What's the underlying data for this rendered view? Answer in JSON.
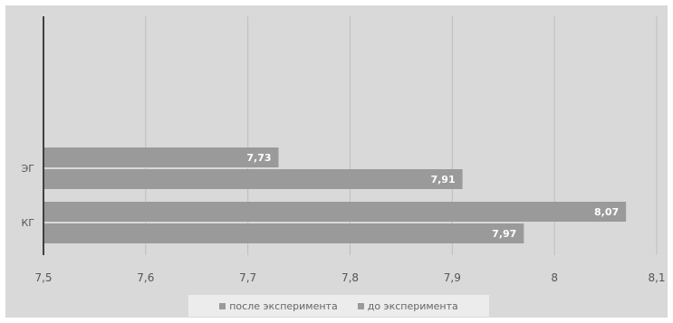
{
  "chart_data": {
    "type": "bar",
    "orientation": "horizontal",
    "categories": [
      "ЭГ",
      "КГ"
    ],
    "series": [
      {
        "name": "после эксперимента",
        "values": [
          7.73,
          8.07
        ],
        "labels": [
          "7,73",
          "8,07"
        ]
      },
      {
        "name": "до эксперимента",
        "values": [
          7.91,
          7.97
        ],
        "labels": [
          "7,91",
          "7,97"
        ]
      }
    ],
    "xlim": [
      7.5,
      8.1
    ],
    "xticks": [
      7.5,
      7.6,
      7.7,
      7.8,
      7.9,
      8.0,
      8.1
    ],
    "xtick_labels": [
      "7,5",
      "7,6",
      "7,7",
      "7,8",
      "7,9",
      "8",
      "8,1"
    ],
    "grid": true,
    "legend_position": "bottom",
    "colors": {
      "bar": "#9a9a9a",
      "background": "#d9d9d9",
      "grid": "#bdbdbd",
      "axis": "#404040",
      "label": "#ffffff"
    }
  }
}
